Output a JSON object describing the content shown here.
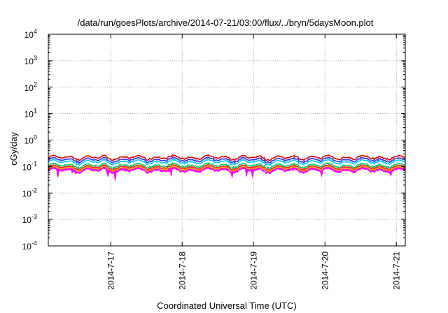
{
  "chart_data": {
    "type": "area",
    "title": "/data/run/goesPlots/archive/2014-07-21/03:00/flux/../bryn/5daysMoon.plot",
    "xlabel": "Coordinated Universal Time (UTC)",
    "ylabel": "cGy/day",
    "y_scale": "log",
    "ylim": [
      0.0001,
      10000
    ],
    "y_ticks": [
      {
        "base": "10",
        "exp": "4",
        "value": 10000
      },
      {
        "base": "10",
        "exp": "3",
        "value": 1000
      },
      {
        "base": "10",
        "exp": "2",
        "value": 100
      },
      {
        "base": "10",
        "exp": "1",
        "value": 10
      },
      {
        "base": "10",
        "exp": "0",
        "value": 1
      },
      {
        "base": "10",
        "exp": "-1",
        "value": 0.1
      },
      {
        "base": "10",
        "exp": "-2",
        "value": 0.01
      },
      {
        "base": "10",
        "exp": "-3",
        "value": 0.001
      },
      {
        "base": "10",
        "exp": "-4",
        "value": 0.0001
      }
    ],
    "xlim": [
      "2014-07-16 03:00",
      "2014-07-21 03:00"
    ],
    "x_ticks": [
      "2014-7-17",
      "2014-7-18",
      "2014-7-19",
      "2014-7-20",
      "2014-7-21"
    ],
    "grid": true,
    "legend": "none",
    "series": [
      {
        "color": "#ff00ff",
        "typical": 0.07,
        "min": 0.025
      },
      {
        "color": "#ff2020",
        "typical": 0.095
      },
      {
        "color": "#ffaa00",
        "typical": 0.085
      },
      {
        "color": "#00cc66",
        "typical": 0.11
      },
      {
        "color": "#00c8ff",
        "typical": 0.15
      },
      {
        "color": "#3030ff",
        "typical": 0.18
      },
      {
        "color": "#dd0000",
        "typical": 0.22
      }
    ]
  }
}
